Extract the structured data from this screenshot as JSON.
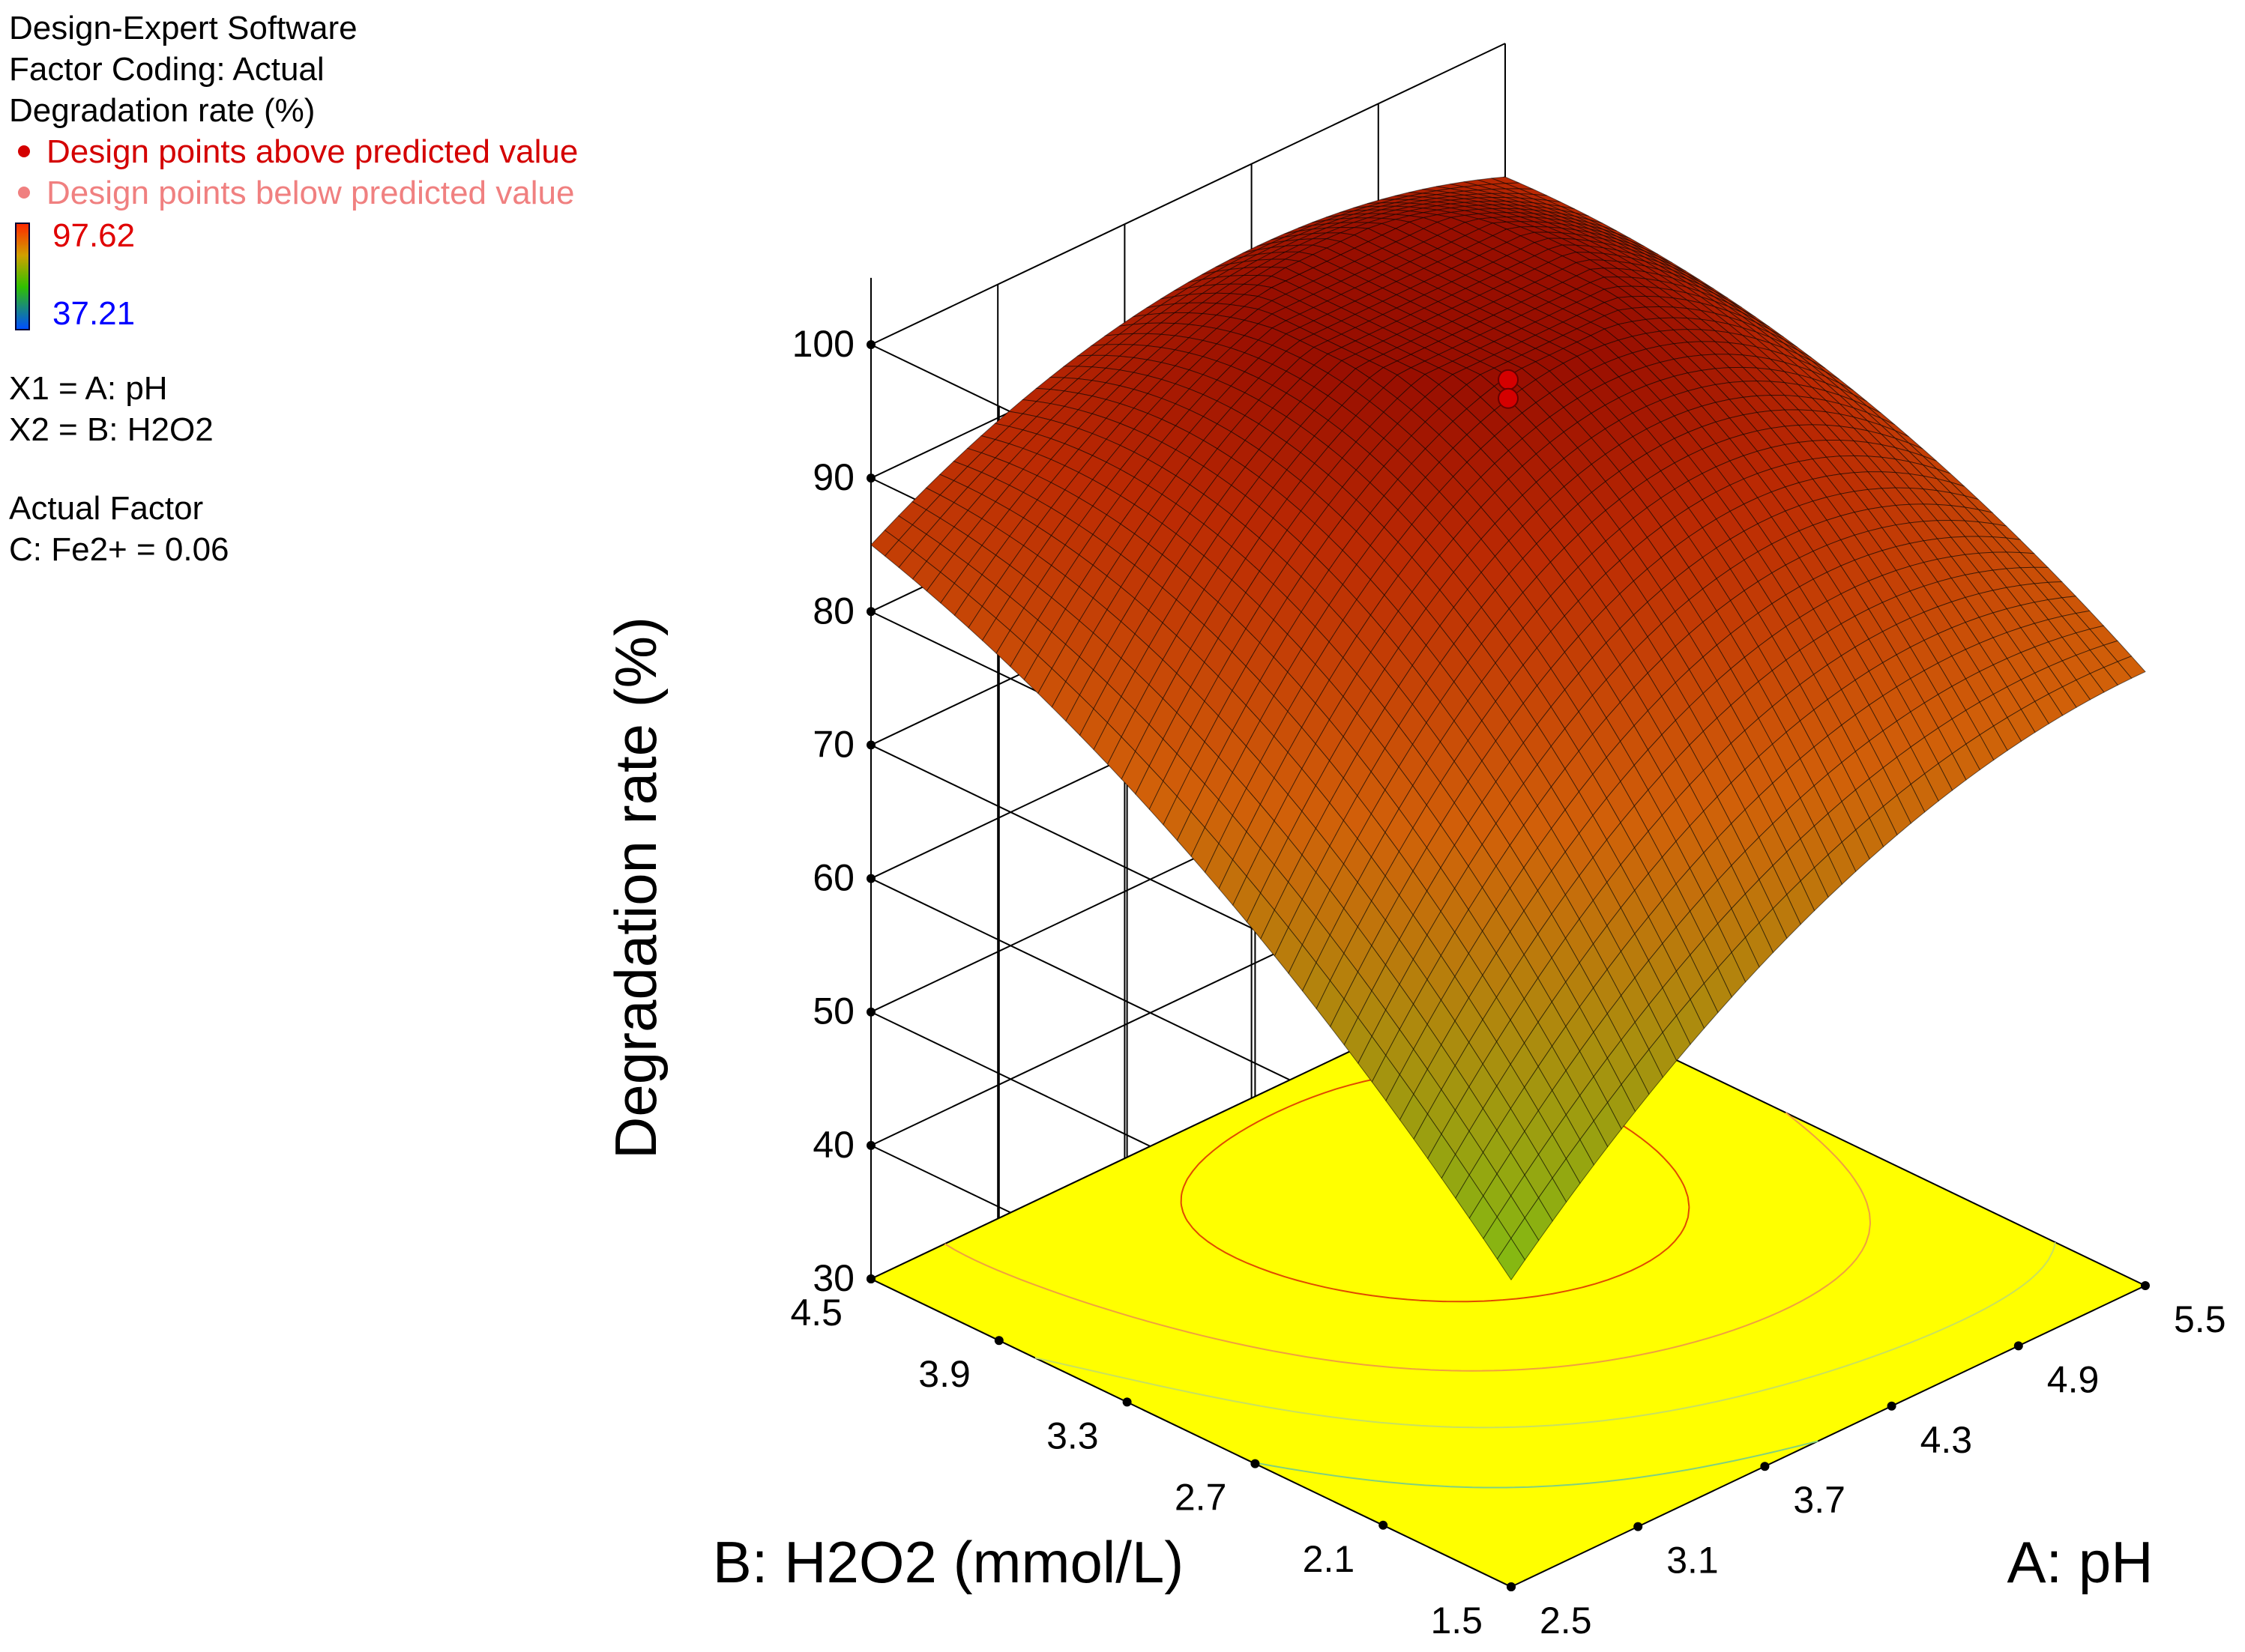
{
  "legend": {
    "software": "Design-Expert Software",
    "factor_coding": "Factor Coding: Actual",
    "response": "Degradation rate (%)",
    "above_label": "Design points above predicted value",
    "below_label": "Design points below predicted value",
    "above_color": "#d40000",
    "below_color": "#f08080",
    "scale_max": "97.62",
    "scale_min": "37.21",
    "scale_max_color": "#e00000",
    "scale_min_color": "#0000ff",
    "x1": "X1 = A: pH",
    "x2": "X2 = B: H2O2",
    "actual_factor": "Actual Factor",
    "actual_factor_value": "C: Fe2+ = 0.06"
  },
  "chart_data": {
    "type": "surface3d",
    "zlabel": "Degradation rate (%)",
    "xlabel": "A: pH",
    "ylabel": "B: H2O2 (mmol/L)",
    "x_ticks": [
      "2.5",
      "3.1",
      "3.7",
      "4.3",
      "4.9",
      "5.5"
    ],
    "y_ticks": [
      "1.5",
      "2.1",
      "2.7",
      "3.3",
      "3.9",
      "4.5"
    ],
    "z_ticks": [
      "30",
      "40",
      "50",
      "60",
      "70",
      "80",
      "90",
      "100"
    ],
    "xlim": [
      2.5,
      5.5
    ],
    "ylim": [
      1.5,
      4.5
    ],
    "zlim": [
      30,
      100
    ],
    "surface_corners": {
      "pH_2.5_H2O2_1.5": 53,
      "pH_2.5_H2O2_4.5": 85,
      "pH_5.5_H2O2_1.5": 76,
      "pH_5.5_H2O2_4.5": 90,
      "peak": 97
    },
    "design_points": [
      {
        "pH": 4.0,
        "H2O2": 3.0,
        "value": 97.62,
        "position": "above"
      },
      {
        "pH": 4.0,
        "H2O2": 3.0,
        "value": 96.9,
        "position": "above"
      }
    ],
    "floor_color": "#ffff00",
    "grid": true
  }
}
